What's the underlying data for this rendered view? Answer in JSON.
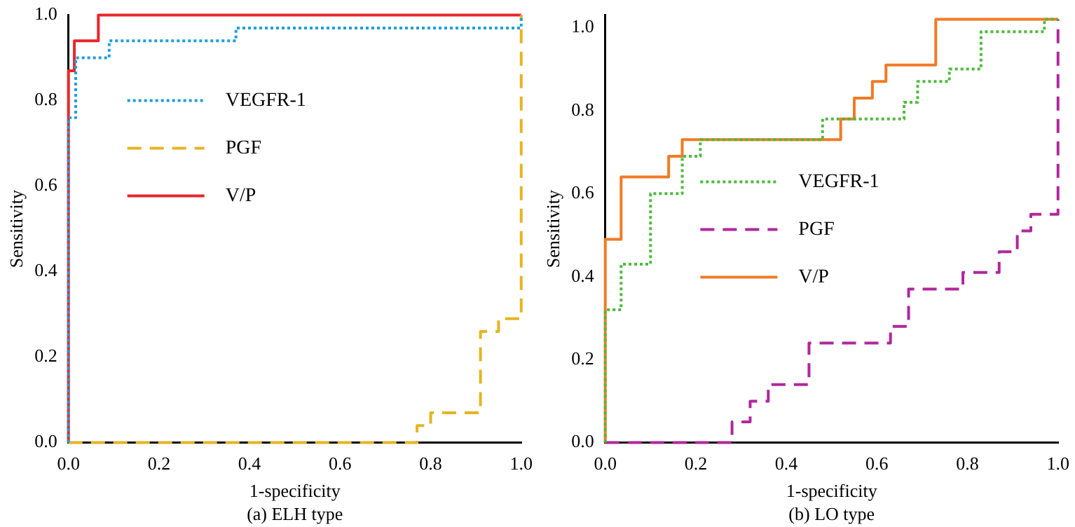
{
  "chart_data": [
    {
      "type": "step",
      "xlabel": "1-specificity",
      "ylabel": "Sensitivity",
      "annotations": [
        "(a) ELH type"
      ],
      "legend": "center left",
      "xlim": [
        0,
        1
      ],
      "ylim": [
        0,
        1
      ],
      "xticks": [
        {
          "value": 0,
          "label": "0.0"
        },
        {
          "value": 0.2,
          "label": "0.2"
        },
        {
          "value": 0.4,
          "label": "0.4"
        },
        {
          "value": 0.6,
          "label": "0.6"
        },
        {
          "value": 0.8,
          "label": "0.8"
        },
        {
          "value": 1,
          "label": "1.0"
        }
      ],
      "yticks": [
        {
          "value": 0,
          "label": "0.0"
        },
        {
          "value": 0.2,
          "label": "0.2"
        },
        {
          "value": 0.4,
          "label": "0.4"
        },
        {
          "value": 0.6,
          "label": "0.6"
        },
        {
          "value": 0.8,
          "label": "0.8"
        },
        {
          "value": 1,
          "label": "1.0"
        }
      ],
      "series": [
        {
          "name": "VEGFR-1",
          "color": "#1e9fdc",
          "line_style": "dotted",
          "x": [
            0,
            0,
            0.016,
            0.09,
            0.37,
            1,
            1
          ],
          "values": [
            0,
            0.76,
            0.9,
            0.94,
            0.97,
            0.97,
            1
          ]
        },
        {
          "name": "PGF",
          "color": "#e6b422",
          "line_style": "dashed",
          "x": [
            0,
            0.77,
            0.8,
            0.91,
            0.95,
            1,
            1
          ],
          "values": [
            0,
            0.04,
            0.07,
            0.26,
            0.29,
            0.32,
            1
          ]
        },
        {
          "name": "V/P",
          "color": "#e8262a",
          "line_style": "solid",
          "x": [
            0,
            0,
            0.013,
            0.066,
            1
          ],
          "values": [
            0,
            0.87,
            0.94,
            1,
            1
          ]
        }
      ]
    },
    {
      "type": "step",
      "xlabel": "1-specificity",
      "ylabel": "Sensitivity",
      "annotations": [
        "(b) LO type"
      ],
      "legend": "center",
      "xlim": [
        0,
        1
      ],
      "ylim": [
        0,
        1.03
      ],
      "xticks": [
        {
          "value": 0,
          "label": "0.0"
        },
        {
          "value": 0.2,
          "label": "0.2"
        },
        {
          "value": 0.4,
          "label": "0.4"
        },
        {
          "value": 0.6,
          "label": "0.6"
        },
        {
          "value": 0.8,
          "label": "0.8"
        },
        {
          "value": 1,
          "label": "1.0"
        }
      ],
      "yticks": [
        {
          "value": 0,
          "label": "0.0"
        },
        {
          "value": 0.2,
          "label": "0.2"
        },
        {
          "value": 0.4,
          "label": "0.4"
        },
        {
          "value": 0.6,
          "label": "0.6"
        },
        {
          "value": 0.8,
          "label": "0.8"
        },
        {
          "value": 1,
          "label": "1.0"
        }
      ],
      "series": [
        {
          "name": "VEGFR-1",
          "color": "#4cbb3c",
          "line_style": "dotted",
          "x": [
            0,
            0,
            0.035,
            0.1,
            0.17,
            0.21,
            0.48,
            0.66,
            0.69,
            0.76,
            0.83,
            0.97,
            1
          ],
          "values": [
            0,
            0.32,
            0.43,
            0.6,
            0.69,
            0.73,
            0.78,
            0.82,
            0.87,
            0.9,
            0.99,
            1.02,
            1.02
          ]
        },
        {
          "name": "PGF",
          "color": "#b0279c",
          "line_style": "dashed",
          "x": [
            0,
            0.28,
            0.32,
            0.36,
            0.45,
            0.63,
            0.67,
            0.79,
            0.87,
            0.91,
            0.94,
            1,
            1
          ],
          "values": [
            0,
            0.05,
            0.1,
            0.14,
            0.24,
            0.28,
            0.37,
            0.41,
            0.46,
            0.51,
            0.55,
            0.57,
            1.02
          ]
        },
        {
          "name": "V/P",
          "color": "#f07b25",
          "line_style": "solid",
          "x": [
            0,
            0,
            0.035,
            0.14,
            0.17,
            0.52,
            0.55,
            0.59,
            0.62,
            0.73,
            1
          ],
          "values": [
            0,
            0.49,
            0.64,
            0.69,
            0.73,
            0.78,
            0.83,
            0.87,
            0.91,
            1.02,
            1.02
          ]
        }
      ]
    }
  ]
}
